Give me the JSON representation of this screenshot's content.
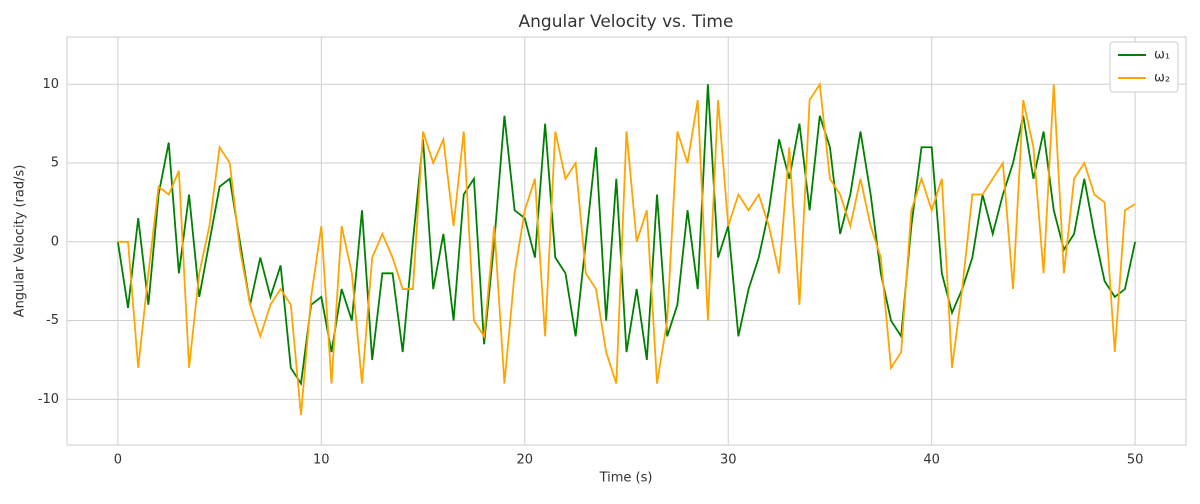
{
  "chart_data": {
    "type": "line",
    "title": "Angular Velocity vs. Time",
    "xlabel": "Time (s)",
    "ylabel": "Angular Velocity (rad/s)",
    "x": [
      0,
      0.5,
      1,
      1.5,
      2,
      2.5,
      3,
      3.5,
      4,
      4.5,
      5,
      5.5,
      6,
      6.5,
      7,
      7.5,
      8,
      8.5,
      9,
      9.5,
      10,
      10.5,
      11,
      11.5,
      12,
      12.5,
      13,
      13.5,
      14,
      14.5,
      15,
      15.5,
      16,
      16.5,
      17,
      17.5,
      18,
      18.5,
      19,
      19.5,
      20,
      20.5,
      21,
      21.5,
      22,
      22.5,
      23,
      23.5,
      24,
      24.5,
      25,
      25.5,
      26,
      26.5,
      27,
      27.5,
      28,
      28.5,
      29,
      29.5,
      30,
      30.5,
      31,
      31.5,
      32,
      32.5,
      33,
      33.5,
      34,
      34.5,
      35,
      35.5,
      36,
      36.5,
      37,
      37.5,
      38,
      38.5,
      39,
      39.5,
      40,
      40.5,
      41,
      41.5,
      42,
      42.5,
      43,
      43.5,
      44,
      44.5,
      45,
      45.5,
      46,
      46.5,
      47,
      47.5,
      48,
      48.5,
      49,
      49.5,
      50
    ],
    "series": [
      {
        "name": "ω₁",
        "color": "#008000",
        "values": [
          0,
          -4.2,
          1.5,
          -4,
          3,
          6.3,
          -2,
          3,
          -3.5,
          0,
          3.5,
          4,
          0,
          -4,
          -1,
          -3.5,
          -1.5,
          -8,
          -9,
          -4,
          -3.5,
          -7,
          -3,
          -5,
          2,
          -7.5,
          -2,
          -2,
          -7,
          0,
          6.5,
          -3,
          0.5,
          -5,
          3,
          4,
          -6.5,
          0,
          8,
          2,
          1.5,
          -1,
          7.5,
          -1,
          -2,
          -6,
          0,
          6,
          -5,
          4,
          -7,
          -3,
          -7.5,
          3,
          -6,
          -4,
          2,
          -3,
          10,
          -1,
          1,
          -6,
          -3,
          -1,
          2,
          6.5,
          4,
          7.5,
          2,
          8,
          6,
          0.5,
          3,
          7,
          3,
          -2,
          -5,
          -6,
          1,
          6,
          6,
          -2,
          -4.5,
          -3,
          -1,
          3,
          0.5,
          3,
          5,
          8,
          4,
          7,
          2,
          -0.5,
          0.5,
          4,
          0.5,
          -2.5,
          -3.5,
          -3,
          0
        ]
      },
      {
        "name": "ω₂",
        "color": "#ffa500",
        "values": [
          0,
          0,
          -8,
          -2,
          3.5,
          3,
          4.5,
          -8,
          -2,
          1,
          6,
          5,
          -0.5,
          -4,
          -6,
          -4,
          -3,
          -4,
          -11,
          -3.5,
          1,
          -9,
          1,
          -2,
          -9,
          -1,
          0.5,
          -1,
          -3,
          -3,
          7,
          5,
          6.5,
          1,
          7,
          -5,
          -6,
          1,
          -9,
          -2,
          2,
          4,
          -6,
          7,
          4,
          5,
          -2,
          -3,
          -7,
          -9,
          7,
          0,
          2,
          -9,
          -5,
          7,
          5,
          9,
          -5,
          9,
          1,
          3,
          2,
          3,
          1,
          -2,
          6,
          -4,
          9,
          10,
          4,
          3,
          1,
          4,
          1,
          -1,
          -8,
          -7,
          2,
          4,
          2,
          4,
          -8,
          -3,
          3,
          3,
          4,
          5,
          -3,
          9,
          6,
          -2,
          10,
          -2,
          4,
          5,
          3,
          2.5,
          -7,
          2,
          2.4
        ]
      }
    ],
    "xlim": [
      -2.5,
      52.5
    ],
    "ylim": [
      -12.9,
      13
    ],
    "xticks": [
      0,
      10,
      20,
      30,
      40,
      50
    ],
    "yticks": [
      -10,
      -5,
      0,
      5,
      10
    ],
    "grid": true,
    "legend": "upper right"
  }
}
